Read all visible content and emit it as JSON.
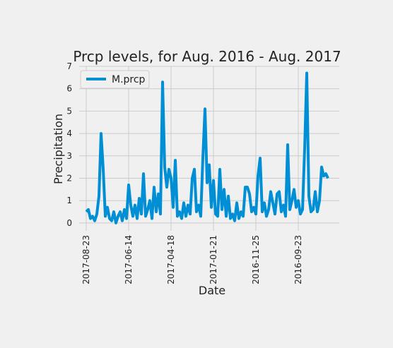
{
  "chart_data": {
    "type": "line",
    "title": "Prcp levels, for Aug. 2016 - Aug. 2017",
    "xlabel": "Date",
    "ylabel": "Precipitation",
    "categories": [
      "2017-08-23",
      null,
      null,
      null,
      null,
      null,
      null,
      null,
      null,
      null,
      null,
      null,
      null,
      null,
      null,
      null,
      null,
      null,
      null,
      null,
      "2017-06-14",
      null,
      null,
      null,
      null,
      null,
      null,
      null,
      null,
      null,
      null,
      null,
      null,
      null,
      null,
      null,
      null,
      null,
      null,
      null,
      "2017-04-18",
      null,
      null,
      null,
      null,
      null,
      null,
      null,
      null,
      null,
      null,
      null,
      null,
      null,
      null,
      null,
      null,
      null,
      null,
      null,
      "2017-01-21",
      null,
      null,
      null,
      null,
      null,
      null,
      null,
      null,
      null,
      null,
      null,
      null,
      null,
      null,
      null,
      null,
      null,
      null,
      null,
      "2016-11-25",
      null,
      null,
      null,
      null,
      null,
      null,
      null,
      null,
      null,
      null,
      null,
      null,
      null,
      null,
      null,
      null,
      null,
      null,
      null,
      "2016-09-23",
      null,
      null,
      null,
      null,
      null,
      null,
      null,
      null,
      null,
      null,
      null,
      null,
      null,
      null
    ],
    "series": [
      {
        "name": "M.prcp",
        "color": "#008fd5",
        "values": [
          0.5,
          0.6,
          0.2,
          0.3,
          0.1,
          0.4,
          1.2,
          4.0,
          2.4,
          0.3,
          0.7,
          0.2,
          0.1,
          0.5,
          0.0,
          0.3,
          0.5,
          0.1,
          0.6,
          0.2,
          1.7,
          0.8,
          0.3,
          0.8,
          0.2,
          1.1,
          0.4,
          2.2,
          0.3,
          0.6,
          1.0,
          0.2,
          1.6,
          0.5,
          1.3,
          0.4,
          6.3,
          2.5,
          1.6,
          2.4,
          2.0,
          0.7,
          2.8,
          0.3,
          0.5,
          0.2,
          0.9,
          0.3,
          0.8,
          0.4,
          2.0,
          2.4,
          0.5,
          0.8,
          0.3,
          2.9,
          5.1,
          1.8,
          2.6,
          0.7,
          1.9,
          0.4,
          0.3,
          2.4,
          0.6,
          1.5,
          0.3,
          1.2,
          0.2,
          0.4,
          0.1,
          0.9,
          0.2,
          0.5,
          0.3,
          1.6,
          1.6,
          1.3,
          0.5,
          0.7,
          0.4,
          2.1,
          2.9,
          0.5,
          0.9,
          0.3,
          0.6,
          1.4,
          0.9,
          0.4,
          1.3,
          1.4,
          0.5,
          0.8,
          0.3,
          3.5,
          0.6,
          1.0,
          1.5,
          0.7,
          1.0,
          0.4,
          0.6,
          3.3,
          6.7,
          1.2,
          0.5,
          0.6,
          1.4,
          0.5,
          1.0,
          2.5,
          2.1,
          2.2,
          2.0
        ]
      }
    ],
    "ylim": [
      -0.35,
      7
    ],
    "yticks": [
      0,
      1,
      2,
      3,
      4,
      5,
      6,
      7
    ],
    "grid": true,
    "legend": "upper left"
  }
}
